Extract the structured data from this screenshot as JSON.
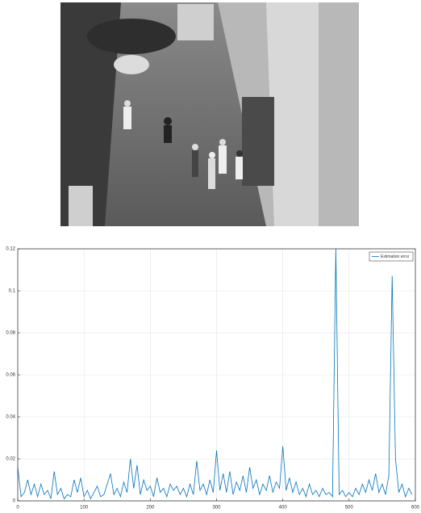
{
  "chart_data": {
    "type": "line",
    "x": [
      0,
      5,
      10,
      15,
      20,
      25,
      30,
      35,
      40,
      45,
      50,
      55,
      60,
      65,
      70,
      75,
      80,
      85,
      90,
      95,
      100,
      105,
      110,
      115,
      120,
      125,
      130,
      135,
      140,
      145,
      150,
      155,
      160,
      165,
      170,
      175,
      180,
      185,
      190,
      195,
      200,
      205,
      210,
      215,
      220,
      225,
      230,
      235,
      240,
      245,
      250,
      255,
      260,
      265,
      270,
      275,
      280,
      285,
      290,
      295,
      300,
      305,
      310,
      315,
      320,
      325,
      330,
      335,
      340,
      345,
      350,
      355,
      360,
      365,
      370,
      375,
      380,
      385,
      390,
      395,
      400,
      405,
      410,
      415,
      420,
      425,
      430,
      435,
      440,
      445,
      450,
      455,
      460,
      465,
      470,
      475,
      480,
      485,
      490,
      495,
      500,
      505,
      510,
      515,
      520,
      525,
      530,
      535,
      540,
      545,
      550,
      555,
      560,
      565,
      570,
      575,
      580,
      585,
      590,
      595
    ],
    "series": [
      {
        "name": "Estimation error",
        "color": "#0072bd",
        "values": [
          0.016,
          0.002,
          0.004,
          0.01,
          0.003,
          0.008,
          0.002,
          0.008,
          0.003,
          0.005,
          0.001,
          0.014,
          0.003,
          0.006,
          0.001,
          0.003,
          0.002,
          0.01,
          0.004,
          0.011,
          0.002,
          0.005,
          0.001,
          0.004,
          0.007,
          0.002,
          0.003,
          0.008,
          0.013,
          0.003,
          0.006,
          0.002,
          0.009,
          0.004,
          0.02,
          0.006,
          0.017,
          0.003,
          0.01,
          0.005,
          0.007,
          0.002,
          0.011,
          0.004,
          0.006,
          0.002,
          0.008,
          0.005,
          0.007,
          0.003,
          0.006,
          0.002,
          0.008,
          0.003,
          0.019,
          0.005,
          0.008,
          0.003,
          0.01,
          0.004,
          0.024,
          0.005,
          0.013,
          0.004,
          0.014,
          0.003,
          0.009,
          0.005,
          0.012,
          0.004,
          0.016,
          0.006,
          0.01,
          0.003,
          0.008,
          0.005,
          0.012,
          0.004,
          0.009,
          0.006,
          0.026,
          0.005,
          0.011,
          0.004,
          0.009,
          0.003,
          0.006,
          0.002,
          0.008,
          0.003,
          0.005,
          0.002,
          0.006,
          0.003,
          0.004,
          0.002,
          0.12,
          0.003,
          0.005,
          0.002,
          0.004,
          0.002,
          0.006,
          0.003,
          0.008,
          0.004,
          0.01,
          0.005,
          0.013,
          0.004,
          0.008,
          0.003,
          0.012,
          0.107,
          0.02,
          0.004,
          0.008,
          0.002,
          0.006,
          0.003
        ]
      }
    ],
    "xlim": [
      0,
      600
    ],
    "xticks": [
      0,
      100,
      200,
      300,
      400,
      500,
      600
    ],
    "ylim": [
      0,
      0.12
    ],
    "yticks": [
      0,
      0.02,
      0.04,
      0.06,
      0.08,
      0.1,
      0.12
    ],
    "grid": true,
    "legend": "upper right"
  }
}
